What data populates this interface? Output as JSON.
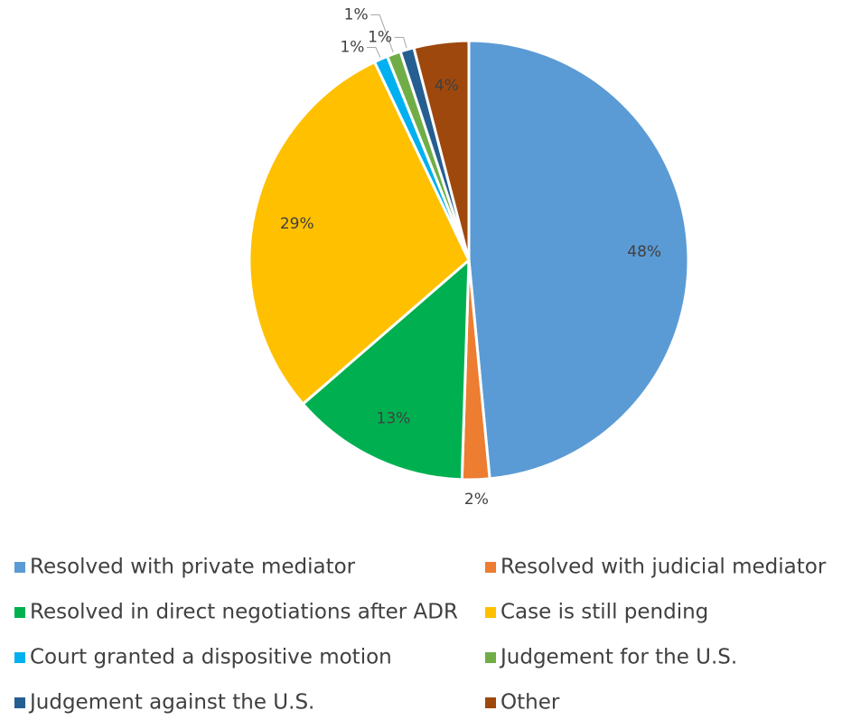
{
  "chart_data": {
    "type": "pie",
    "categories": [
      "Resolved with private mediator",
      "Resolved with judicial mediator",
      "Resolved in direct negotiations after ADR",
      "Case is still pending",
      "Court granted a dispositive motion",
      "Judgement for the U.S.",
      "Judgement against the U.S.",
      "Other"
    ],
    "values": [
      48,
      2,
      13,
      29,
      1,
      1,
      1,
      4
    ],
    "value_labels": [
      "48%",
      "2%",
      "13%",
      "29%",
      "1%",
      "1%",
      "1%",
      "4%"
    ],
    "colors": [
      "#5b9bd5",
      "#ed7d31",
      "#00b050",
      "#ffc000",
      "#00b0f0",
      "#70ad47",
      "#255e91",
      "#9e480e"
    ],
    "legend": "bottom"
  }
}
